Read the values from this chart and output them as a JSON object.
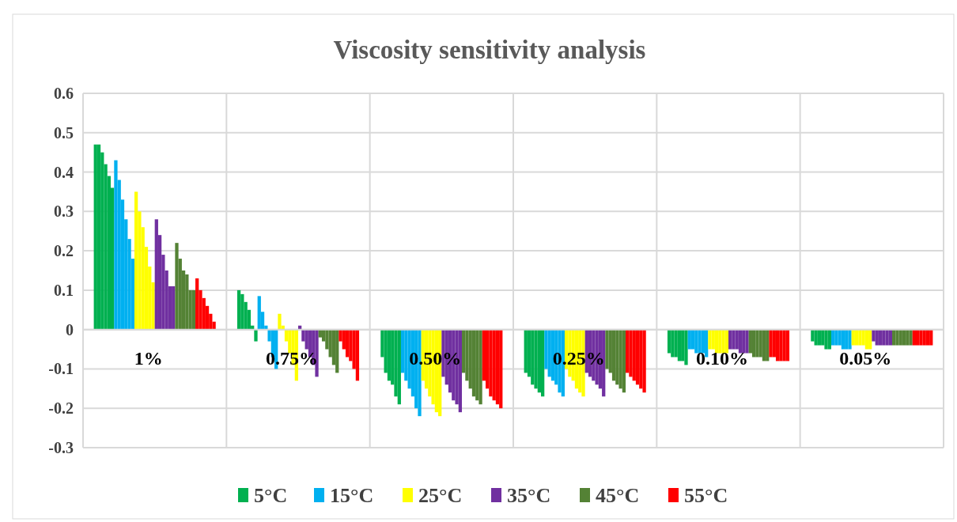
{
  "chart_data": {
    "type": "bar",
    "title": "Viscosity sensitivity analysis",
    "categories": [
      "1%",
      "0.75%",
      "0.50%",
      "0.25%",
      "0.10%",
      "0.05%"
    ],
    "ylim": [
      -0.3,
      0.6
    ],
    "yticks": [
      {
        "value": -0.3,
        "label": "-0.3"
      },
      {
        "value": -0.2,
        "label": "-0.2"
      },
      {
        "value": -0.1,
        "label": "-0.1"
      },
      0,
      {
        "value": 0.1,
        "label": "0.1"
      },
      {
        "value": 0.2,
        "label": "0.2"
      },
      {
        "value": 0.3,
        "label": "0.3"
      },
      {
        "value": 0.4,
        "label": "0.4"
      },
      {
        "value": 0.5,
        "label": "0.5"
      },
      {
        "value": 0.6,
        "label": "0.6"
      }
    ],
    "grid": true,
    "legend": "bottom",
    "series": [
      {
        "name": "5°C",
        "color": "#00b050",
        "values": [
          0.47,
          0.1,
          -0.07,
          -0.11,
          -0.06,
          -0.03
        ]
      },
      {
        "color": "#00b050",
        "values": [
          0.47,
          0.09,
          -0.11,
          -0.12,
          -0.07,
          -0.04
        ]
      },
      {
        "color": "#00b050",
        "values": [
          0.45,
          0.07,
          -0.13,
          -0.14,
          -0.07,
          -0.04
        ]
      },
      {
        "color": "#00b050",
        "values": [
          0.42,
          0.05,
          -0.14,
          -0.15,
          -0.08,
          -0.04
        ]
      },
      {
        "color": "#00b050",
        "values": [
          0.39,
          0.01,
          -0.17,
          -0.16,
          -0.08,
          -0.05
        ]
      },
      {
        "color": "#00b050",
        "values": [
          0.36,
          -0.03,
          -0.19,
          -0.17,
          -0.09,
          -0.05
        ]
      },
      {
        "name": "15°C",
        "color": "#00b0f0",
        "values": [
          0.43,
          0.085,
          -0.11,
          -0.1,
          -0.05,
          -0.04
        ]
      },
      {
        "color": "#00b0f0",
        "values": [
          0.38,
          0.045,
          -0.13,
          -0.12,
          -0.05,
          -0.04
        ]
      },
      {
        "color": "#00b0f0",
        "values": [
          0.33,
          0.01,
          -0.15,
          -0.13,
          -0.06,
          -0.04
        ]
      },
      {
        "color": "#00b0f0",
        "values": [
          0.28,
          -0.03,
          -0.17,
          -0.14,
          -0.06,
          -0.05
        ]
      },
      {
        "color": "#00b0f0",
        "values": [
          0.23,
          -0.07,
          -0.2,
          -0.16,
          -0.06,
          -0.05
        ]
      },
      {
        "color": "#00b0f0",
        "values": [
          0.18,
          -0.1,
          -0.22,
          -0.17,
          -0.07,
          -0.05
        ]
      },
      {
        "name": "25°C",
        "color": "#ffff00",
        "values": [
          0.35,
          0.04,
          -0.13,
          -0.1,
          -0.05,
          -0.04
        ]
      },
      {
        "color": "#ffff00",
        "values": [
          0.3,
          0.01,
          -0.15,
          -0.12,
          -0.05,
          -0.04
        ]
      },
      {
        "color": "#ffff00",
        "values": [
          0.26,
          -0.03,
          -0.17,
          -0.13,
          -0.06,
          -0.04
        ]
      },
      {
        "color": "#ffff00",
        "values": [
          0.21,
          -0.06,
          -0.19,
          -0.15,
          -0.06,
          -0.04
        ]
      },
      {
        "color": "#ffff00",
        "values": [
          0.16,
          -0.09,
          -0.21,
          -0.16,
          -0.06,
          -0.05
        ]
      },
      {
        "color": "#ffff00",
        "values": [
          0.12,
          -0.13,
          -0.22,
          -0.17,
          -0.06,
          -0.05
        ]
      },
      {
        "name": "35°C",
        "color": "#7030a0",
        "values": [
          0.28,
          0.01,
          -0.12,
          -0.11,
          -0.05,
          -0.03
        ]
      },
      {
        "color": "#7030a0",
        "values": [
          0.24,
          -0.03,
          -0.14,
          -0.12,
          -0.05,
          -0.04
        ]
      },
      {
        "color": "#7030a0",
        "values": [
          0.19,
          -0.05,
          -0.16,
          -0.13,
          -0.05,
          -0.04
        ]
      },
      {
        "color": "#7030a0",
        "values": [
          0.15,
          -0.07,
          -0.18,
          -0.14,
          -0.06,
          -0.04
        ]
      },
      {
        "color": "#7030a0",
        "values": [
          0.11,
          -0.09,
          -0.19,
          -0.15,
          -0.06,
          -0.04
        ]
      },
      {
        "color": "#7030a0",
        "values": [
          0.11,
          -0.12,
          -0.21,
          -0.17,
          -0.06,
          -0.04
        ]
      },
      {
        "name": "45°C",
        "color": "#548235",
        "values": [
          0.22,
          -0.02,
          -0.11,
          -0.1,
          -0.06,
          -0.04
        ]
      },
      {
        "color": "#548235",
        "values": [
          0.18,
          -0.03,
          -0.13,
          -0.11,
          -0.07,
          -0.04
        ]
      },
      {
        "color": "#548235",
        "values": [
          0.15,
          -0.05,
          -0.15,
          -0.13,
          -0.07,
          -0.04
        ]
      },
      {
        "color": "#548235",
        "values": [
          0.14,
          -0.07,
          -0.17,
          -0.14,
          -0.07,
          -0.04
        ]
      },
      {
        "color": "#548235",
        "values": [
          0.1,
          -0.09,
          -0.18,
          -0.15,
          -0.08,
          -0.04
        ]
      },
      {
        "color": "#548235",
        "values": [
          0.1,
          -0.11,
          -0.19,
          -0.16,
          -0.08,
          -0.04
        ]
      },
      {
        "name": "55°C",
        "color": "#ff0000",
        "values": [
          0.13,
          -0.03,
          -0.13,
          -0.11,
          -0.07,
          -0.04
        ]
      },
      {
        "color": "#ff0000",
        "values": [
          0.1,
          -0.05,
          -0.15,
          -0.12,
          -0.07,
          -0.04
        ]
      },
      {
        "color": "#ff0000",
        "values": [
          0.08,
          -0.07,
          -0.17,
          -0.13,
          -0.08,
          -0.04
        ]
      },
      {
        "color": "#ff0000",
        "values": [
          0.06,
          -0.08,
          -0.18,
          -0.14,
          -0.08,
          -0.04
        ]
      },
      {
        "color": "#ff0000",
        "values": [
          0.04,
          -0.1,
          -0.19,
          -0.15,
          -0.08,
          -0.04
        ]
      },
      {
        "color": "#ff0000",
        "values": [
          0.02,
          -0.13,
          -0.2,
          -0.16,
          -0.08,
          -0.04
        ]
      }
    ]
  }
}
